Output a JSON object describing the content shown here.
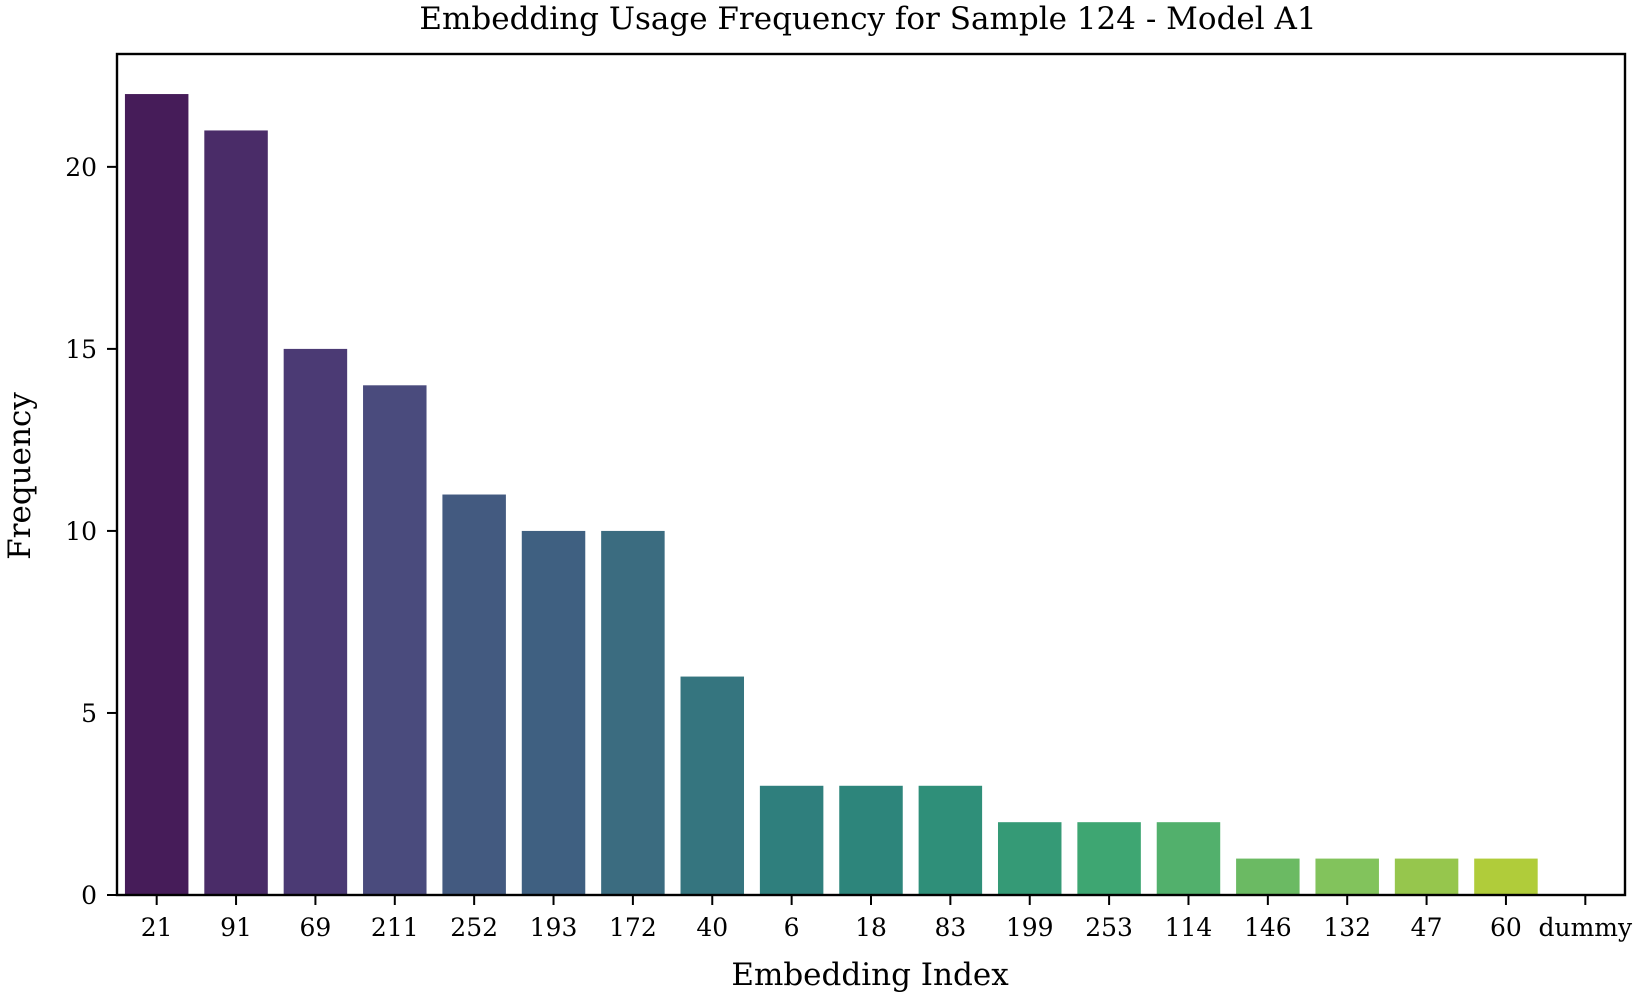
{
  "chart_data": {
    "type": "bar",
    "title": "Embedding Usage Frequency for Sample 124 - Model A1",
    "xlabel": "Embedding Index",
    "ylabel": "Frequency",
    "categories": [
      "21",
      "91",
      "69",
      "211",
      "252",
      "193",
      "172",
      "40",
      "6",
      "18",
      "83",
      "199",
      "253",
      "114",
      "146",
      "132",
      "47",
      "60",
      "dummy"
    ],
    "values": [
      22,
      21,
      15,
      14,
      11,
      10,
      10,
      6,
      3,
      3,
      3,
      2,
      2,
      2,
      1,
      1,
      1,
      1,
      0
    ],
    "colors": [
      "#461c59",
      "#4a2c68",
      "#4b3a74",
      "#4a4b7d",
      "#435a80",
      "#3f6081",
      "#3b6c80",
      "#35757f",
      "#2f7f7d",
      "#2d857b",
      "#2f8f79",
      "#359a76",
      "#3ea672",
      "#52b06c",
      "#6bba63",
      "#82c35c",
      "#96c64d",
      "#b0cc3a",
      "#c8d62e"
    ],
    "yticks": [
      0,
      5,
      10,
      15,
      20
    ],
    "ylim": [
      0,
      23.1
    ],
    "grid": false,
    "legend": "none"
  }
}
